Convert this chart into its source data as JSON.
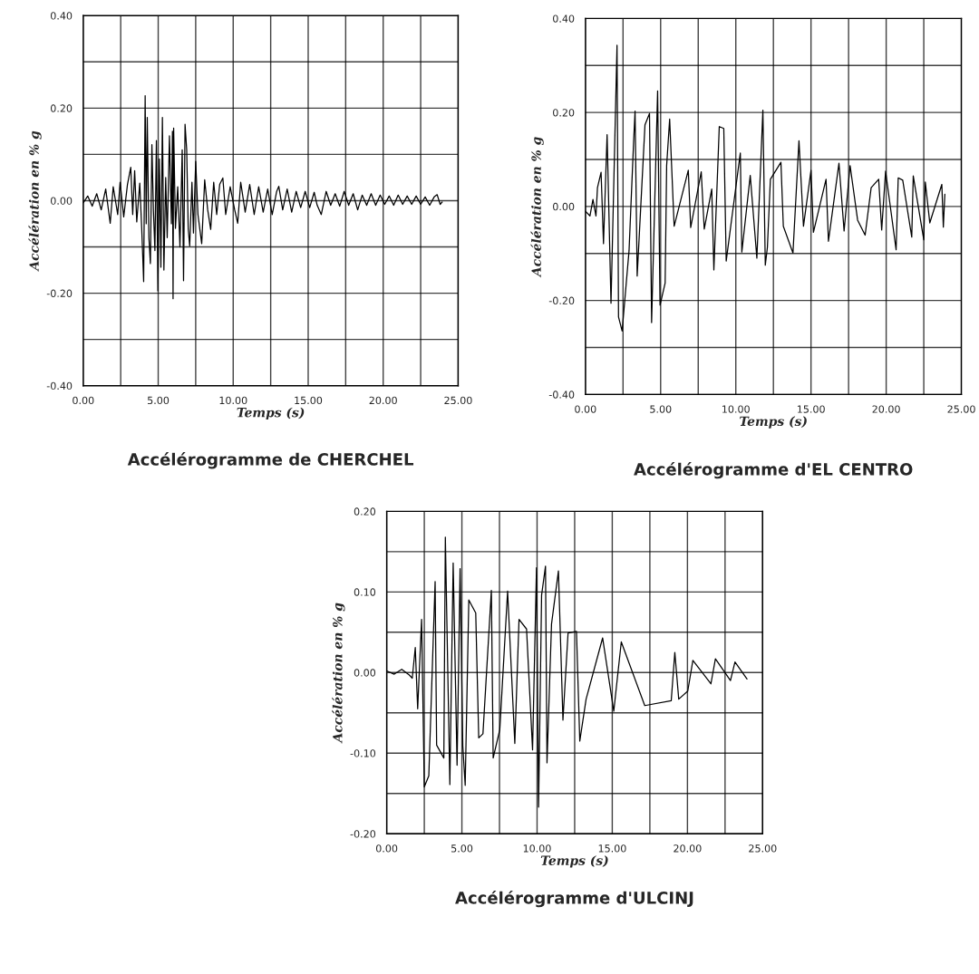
{
  "chart_data": [
    {
      "type": "line",
      "title": "Accélérogramme de CHERCHEL",
      "xlabel": "Temps (s)",
      "ylabel": "Accélération en % g",
      "grid": true,
      "xlim": [
        0,
        25
      ],
      "ylim": [
        -0.4,
        0.4
      ],
      "xticks": [
        {
          "value": 0,
          "label": "0.00"
        },
        {
          "value": 2.5,
          "label": null
        },
        {
          "value": 5,
          "label": "5.00"
        },
        {
          "value": 7.5,
          "label": null
        },
        {
          "value": 10,
          "label": "10.00"
        },
        {
          "value": 12.5,
          "label": null
        },
        {
          "value": 15,
          "label": "15.00"
        },
        {
          "value": 17.5,
          "label": null
        },
        {
          "value": 20,
          "label": "20.00"
        },
        {
          "value": 22.5,
          "label": null
        },
        {
          "value": 25,
          "label": "25.00"
        }
      ],
      "yticks": [
        {
          "value": -0.4,
          "label": "-0.40"
        },
        {
          "value": -0.3,
          "label": null
        },
        {
          "value": -0.2,
          "label": "-0.20"
        },
        {
          "value": -0.1,
          "label": null
        },
        {
          "value": 0,
          "label": "0.00"
        },
        {
          "value": 0.1,
          "label": null
        },
        {
          "value": 0.2,
          "label": "0.20"
        },
        {
          "value": 0.3,
          "label": null
        },
        {
          "value": 0.4,
          "label": "0.40"
        }
      ],
      "series": [
        {
          "color": "#000000",
          "x": [
            0,
            0.3,
            0.6,
            0.9,
            1.2,
            1.5,
            1.8,
            2.0,
            2.3,
            2.46,
            2.7,
            2.95,
            3.17,
            3.3,
            3.43,
            3.57,
            3.77,
            3.9,
            4.03,
            4.13,
            4.2,
            4.27,
            4.38,
            4.48,
            4.58,
            4.68,
            4.78,
            4.88,
            4.98,
            5.08,
            5.18,
            5.28,
            5.38,
            5.5,
            5.6,
            5.75,
            5.88,
            5.95,
            5.99,
            6.03,
            6.15,
            6.3,
            6.45,
            6.6,
            6.69,
            6.79,
            6.9,
            7.0,
            7.1,
            7.25,
            7.35,
            7.5,
            7.65,
            7.9,
            8.1,
            8.3,
            8.5,
            8.7,
            8.9,
            9.1,
            9.31,
            9.5,
            9.8,
            10.1,
            10.3,
            10.5,
            10.8,
            11.1,
            11.4,
            11.7,
            12.0,
            12.3,
            12.6,
            12.9,
            13.04,
            13.3,
            13.6,
            13.9,
            14.2,
            14.5,
            14.8,
            15.1,
            15.4,
            15.6,
            15.87,
            16.2,
            16.5,
            16.8,
            17.1,
            17.4,
            17.7,
            18.0,
            18.3,
            18.6,
            18.9,
            19.2,
            19.5,
            19.8,
            20.1,
            20.4,
            20.7,
            21.0,
            21.3,
            21.6,
            21.9,
            22.2,
            22.5,
            22.8,
            23.1,
            23.4,
            23.6,
            23.8,
            23.93
          ],
          "values": [
            -0.005,
            0.01,
            -0.012,
            0.015,
            -0.02,
            0.025,
            -0.049,
            0.03,
            -0.03,
            0.04,
            -0.035,
            0.035,
            0.072,
            -0.03,
            0.065,
            -0.046,
            0.038,
            -0.06,
            -0.175,
            0.227,
            -0.05,
            0.18,
            -0.08,
            -0.136,
            0.121,
            -0.02,
            -0.108,
            0.13,
            -0.195,
            0.09,
            -0.144,
            0.18,
            -0.15,
            0.05,
            -0.08,
            0.14,
            -0.05,
            0.15,
            -0.212,
            0.157,
            -0.06,
            0.03,
            -0.1,
            0.11,
            -0.173,
            0.165,
            0.11,
            -0.06,
            -0.098,
            0.04,
            -0.07,
            0.085,
            -0.03,
            -0.093,
            0.045,
            -0.02,
            -0.062,
            0.04,
            -0.03,
            0.035,
            0.049,
            -0.03,
            0.03,
            -0.02,
            -0.049,
            0.04,
            -0.025,
            0.035,
            -0.03,
            0.03,
            -0.025,
            0.025,
            -0.03,
            0.02,
            0.031,
            -0.02,
            0.025,
            -0.025,
            0.02,
            -0.015,
            0.02,
            -0.015,
            0.018,
            -0.01,
            -0.03,
            0.02,
            -0.01,
            0.015,
            -0.012,
            0.02,
            -0.01,
            0.015,
            -0.02,
            0.012,
            -0.01,
            0.015,
            -0.01,
            0.012,
            -0.008,
            0.01,
            -0.01,
            0.012,
            -0.008,
            0.01,
            -0.008,
            0.01,
            -0.008,
            0.008,
            -0.01,
            0.008,
            0.013,
            -0.008,
            -0.003
          ]
        }
      ]
    },
    {
      "type": "line",
      "title": "Accélérogramme d'EL CENTRO",
      "xlabel": "Temps (s)",
      "ylabel": "Accélération en % g",
      "grid": true,
      "xlim": [
        0,
        25
      ],
      "ylim": [
        -0.4,
        0.4
      ],
      "xticks": [
        {
          "value": 0,
          "label": "0.00"
        },
        {
          "value": 2.5,
          "label": null
        },
        {
          "value": 5,
          "label": "5.00"
        },
        {
          "value": 7.5,
          "label": null
        },
        {
          "value": 10,
          "label": "10.00"
        },
        {
          "value": 12.5,
          "label": null
        },
        {
          "value": 15,
          "label": "15.00"
        },
        {
          "value": 17.5,
          "label": null
        },
        {
          "value": 20,
          "label": "20.00"
        },
        {
          "value": 22.5,
          "label": null
        },
        {
          "value": 25,
          "label": "25.00"
        }
      ],
      "yticks": [
        {
          "value": -0.4,
          "label": "-0.40"
        },
        {
          "value": -0.3,
          "label": null
        },
        {
          "value": -0.2,
          "label": "-0.20"
        },
        {
          "value": -0.1,
          "label": null
        },
        {
          "value": 0,
          "label": "0.00"
        },
        {
          "value": 0.1,
          "label": null
        },
        {
          "value": 0.2,
          "label": "0.20"
        },
        {
          "value": 0.3,
          "label": null
        },
        {
          "value": 0.4,
          "label": "0.40"
        }
      ],
      "series": [
        {
          "color": "#000000",
          "x": [
            0,
            0.3,
            0.5,
            0.7,
            0.8,
            1.04,
            1.2,
            1.44,
            1.7,
            2.1,
            2.2,
            2.44,
            2.9,
            3.2,
            3.3,
            3.44,
            3.96,
            4.26,
            4.4,
            4.8,
            4.96,
            5.3,
            5.4,
            5.6,
            5.9,
            6.84,
            7.0,
            7.7,
            7.9,
            8.4,
            8.54,
            8.9,
            9.2,
            9.36,
            10.3,
            10.4,
            10.96,
            11.4,
            11.8,
            11.96,
            12.1,
            12.3,
            13.0,
            13.16,
            13.8,
            14.2,
            14.5,
            15.0,
            15.16,
            16.0,
            16.16,
            16.86,
            17.2,
            17.6,
            18.1,
            18.6,
            19.0,
            19.5,
            19.7,
            19.96,
            20.66,
            20.8,
            21.1,
            21.7,
            21.8,
            22.5,
            22.6,
            22.9,
            23.7,
            23.8,
            23.9
          ],
          "values": [
            -0.01,
            -0.02,
            0.015,
            -0.02,
            0.04,
            0.073,
            -0.079,
            0.153,
            -0.206,
            0.343,
            -0.235,
            -0.265,
            -0.094,
            0.135,
            0.203,
            -0.148,
            0.174,
            0.198,
            -0.247,
            0.246,
            -0.21,
            -0.163,
            0.087,
            0.186,
            -0.042,
            0.077,
            -0.045,
            0.074,
            -0.048,
            0.037,
            -0.135,
            0.17,
            0.166,
            -0.116,
            0.114,
            -0.097,
            0.066,
            -0.11,
            0.205,
            -0.125,
            -0.087,
            0.058,
            0.094,
            -0.042,
            -0.099,
            0.14,
            -0.042,
            0.077,
            -0.055,
            0.058,
            -0.074,
            0.092,
            -0.052,
            0.087,
            -0.029,
            -0.061,
            0.04,
            0.058,
            -0.05,
            0.075,
            -0.092,
            0.061,
            0.056,
            -0.065,
            0.065,
            -0.071,
            0.052,
            -0.035,
            0.047,
            -0.044,
            0.026
          ]
        }
      ]
    },
    {
      "type": "line",
      "title": "Accélérogramme d'ULCINJ",
      "xlabel": "Temps (s)",
      "ylabel": "Accélération en % g",
      "grid": true,
      "xlim": [
        0,
        25
      ],
      "ylim": [
        -0.2,
        0.2
      ],
      "xticks": [
        {
          "value": 0,
          "label": "0.00"
        },
        {
          "value": 2.5,
          "label": null
        },
        {
          "value": 5,
          "label": "5.00"
        },
        {
          "value": 7.5,
          "label": null
        },
        {
          "value": 10,
          "label": "10.00"
        },
        {
          "value": 12.5,
          "label": null
        },
        {
          "value": 15,
          "label": "15.00"
        },
        {
          "value": 17.5,
          "label": null
        },
        {
          "value": 20,
          "label": "20.00"
        },
        {
          "value": 22.5,
          "label": null
        },
        {
          "value": 25,
          "label": "25.00"
        }
      ],
      "yticks": [
        {
          "value": -0.2,
          "label": "-0.20"
        },
        {
          "value": -0.15,
          "label": null
        },
        {
          "value": -0.1,
          "label": "-0.10"
        },
        {
          "value": -0.05,
          "label": null
        },
        {
          "value": 0,
          "label": "0.00"
        },
        {
          "value": 0.05,
          "label": null
        },
        {
          "value": 0.1,
          "label": "0.10"
        },
        {
          "value": 0.15,
          "label": null
        },
        {
          "value": 0.2,
          "label": "0.20"
        }
      ],
      "series": [
        {
          "color": "#000000",
          "x": [
            0,
            0.5,
            1.0,
            1.5,
            1.7,
            1.9,
            2.06,
            2.32,
            2.5,
            2.8,
            3.22,
            3.32,
            3.8,
            3.9,
            4.2,
            4.42,
            4.68,
            4.88,
            5.06,
            5.22,
            5.46,
            5.92,
            6.12,
            6.4,
            6.96,
            7.08,
            7.52,
            8.04,
            8.52,
            8.8,
            9.3,
            9.7,
            9.96,
            10.1,
            10.3,
            10.56,
            10.66,
            10.96,
            11.42,
            11.72,
            12.06,
            12.62,
            12.84,
            13.26,
            14.36,
            15.1,
            15.6,
            17.16,
            18.92,
            19.16,
            19.42,
            20.02,
            20.36,
            21.56,
            21.86,
            22.86,
            23.16,
            23.96
          ],
          "values": [
            0.002,
            -0.002,
            0.004,
            -0.003,
            -0.007,
            0.031,
            -0.045,
            0.066,
            -0.142,
            -0.128,
            0.113,
            -0.09,
            -0.106,
            0.168,
            -0.139,
            0.136,
            -0.115,
            0.129,
            -0.091,
            -0.14,
            0.09,
            0.074,
            -0.081,
            -0.076,
            0.102,
            -0.106,
            -0.071,
            0.101,
            -0.088,
            0.066,
            0.054,
            -0.096,
            0.13,
            -0.167,
            0.096,
            0.132,
            -0.112,
            0.06,
            0.126,
            -0.059,
            0.049,
            0.051,
            -0.085,
            -0.033,
            0.043,
            -0.048,
            0.038,
            -0.041,
            -0.035,
            0.025,
            -0.033,
            -0.023,
            0.015,
            -0.014,
            0.017,
            -0.01,
            0.013,
            -0.008
          ]
        }
      ]
    }
  ]
}
